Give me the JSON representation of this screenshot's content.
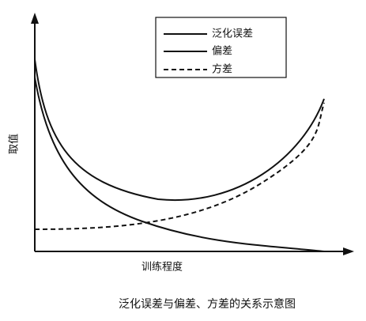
{
  "y_axis_label": "取值",
  "x_axis_label": "训练程度",
  "legend": [
    "泛化误差",
    "偏差",
    "方差"
  ],
  "caption": "泛化误差与偏差、方差的关系示意图"
}
